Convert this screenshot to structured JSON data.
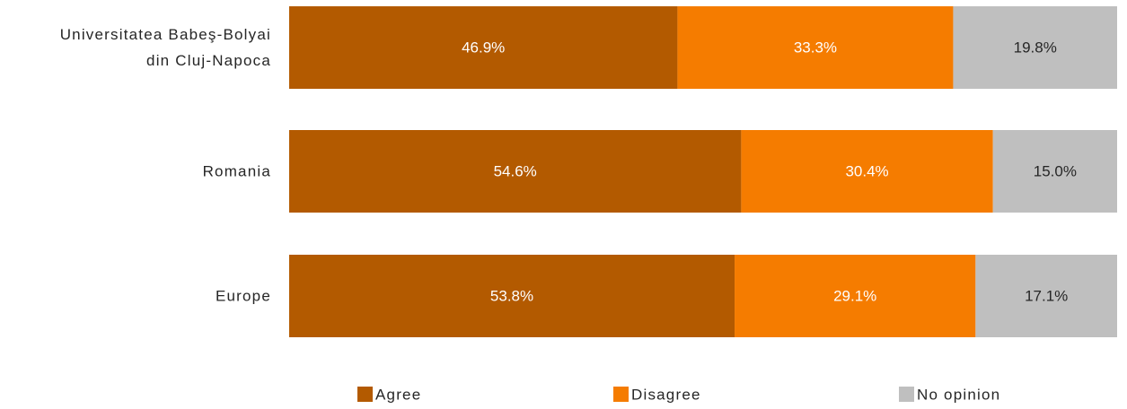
{
  "chart_data": {
    "type": "bar",
    "orientation": "horizontal",
    "stacked": true,
    "normalized": true,
    "categories": [
      [
        "Universitatea Babeş-Bolyai",
        "din Cluj-Napoca"
      ],
      [
        "Romania"
      ],
      [
        "Europe"
      ]
    ],
    "series": [
      {
        "name": "Agree",
        "color": "#b35a00",
        "label_color": "#ffffff",
        "values": [
          46.9,
          54.6,
          53.8
        ],
        "labels": [
          "46.9%",
          "54.6%",
          "53.8%"
        ]
      },
      {
        "name": "Disagree",
        "color": "#f57c00",
        "label_color": "#ffffff",
        "values": [
          33.3,
          30.4,
          29.1
        ],
        "labels": [
          "33.3%",
          "30.4%",
          "29.1%"
        ]
      },
      {
        "name": "No opinion",
        "color": "#bfbfbf",
        "label_color": "#262626",
        "values": [
          19.8,
          15.0,
          17.1
        ],
        "labels": [
          "19.8%",
          "15.0%",
          "17.1%"
        ]
      }
    ],
    "xlim": [
      0,
      100
    ],
    "grid": false,
    "legend_position": "bottom",
    "title": "",
    "xlabel": "",
    "ylabel": ""
  }
}
